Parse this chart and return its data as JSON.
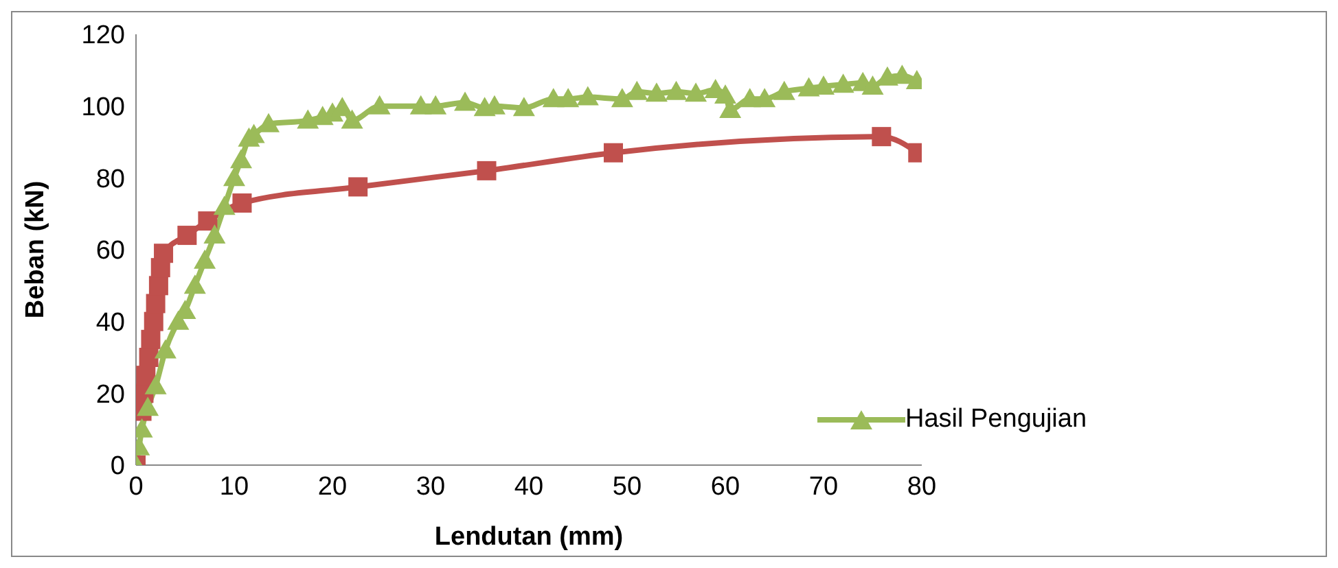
{
  "chart_data": {
    "type": "line",
    "xlabel": "Lendutan (mm)",
    "ylabel": "Beban (kN)",
    "xlim": [
      0,
      80
    ],
    "xticks": [
      0,
      10,
      20,
      30,
      40,
      50,
      60,
      70,
      80
    ],
    "ylim": [
      0,
      120
    ],
    "yticks": [
      0,
      20,
      40,
      60,
      80,
      100,
      120
    ],
    "grid": false,
    "legend": "right",
    "series": [
      {
        "color": "#c0504d",
        "marker": "square",
        "x": [
          0,
          0.2,
          0.4,
          0.6,
          0.8,
          1.0,
          1.3,
          1.5,
          1.8,
          2.0,
          2.3,
          2.5,
          2.8,
          5.2,
          7.3,
          10.8,
          22.6,
          35.7,
          48.6,
          75.9,
          79.6
        ],
        "values": [
          0,
          null,
          null,
          15,
          20,
          25,
          30,
          35,
          40,
          45,
          50,
          55,
          59,
          64,
          68,
          73,
          77.5,
          82,
          87,
          91.5,
          87
        ]
      },
      {
        "name": "Hasil Pengujian",
        "color": "#9bbb59",
        "marker": "triangle",
        "x": [
          0,
          0.3,
          0.6,
          1.2,
          2,
          3,
          4.3,
          5,
          6,
          7,
          8,
          9,
          10,
          10.7,
          11.5,
          12,
          13.5,
          17.5,
          19,
          20,
          21,
          22,
          24.8,
          29,
          30.5,
          33.5,
          35.5,
          36.5,
          39.5,
          42.5,
          44,
          46,
          49.5,
          51,
          53,
          55,
          57,
          59,
          60,
          60.5,
          62.5,
          64,
          66,
          68.5,
          70,
          72,
          74,
          75,
          76.5,
          78,
          79.5
        ],
        "values": [
          0,
          5,
          10,
          16,
          22,
          32,
          40,
          43,
          50,
          57,
          64,
          72,
          80,
          85,
          91,
          92,
          95,
          96,
          97,
          98,
          99.5,
          96,
          100,
          100,
          100,
          101,
          99.5,
          100,
          99.5,
          102,
          102,
          102.5,
          102,
          104,
          103.5,
          104,
          103.5,
          104.5,
          103,
          99,
          102,
          102,
          104,
          105,
          105.5,
          106,
          106.5,
          105.5,
          108,
          108.5,
          107
        ]
      }
    ]
  }
}
